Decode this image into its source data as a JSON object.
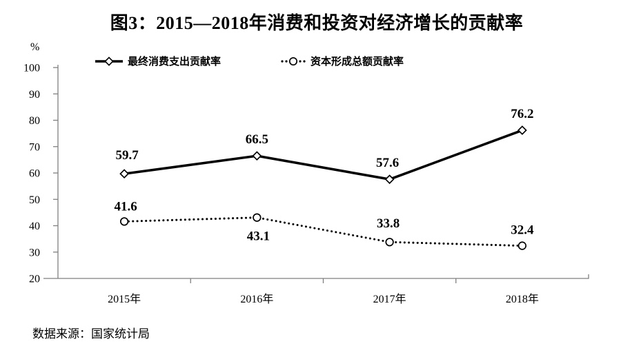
{
  "title": "图3：2015—2018年消费和投资对经济增长的贡献率",
  "y_axis_unit": "%",
  "source_note": "数据来源：国家统计局",
  "legend": [
    {
      "label": "最终消费支出贡献率",
      "marker": "diamond",
      "line": "solid"
    },
    {
      "label": "资本形成总额贡献率",
      "marker": "circle",
      "line": "dotted"
    }
  ],
  "colors": {
    "axis": "#7f7f7f",
    "series": "#000000",
    "text": "#000000",
    "background": "#ffffff",
    "marker_fill": "#ffffff"
  },
  "chart_data": {
    "type": "line",
    "title": "图3：2015—2018年消费和投资对经济增长的贡献率",
    "categories": [
      "2015年",
      "2016年",
      "2017年",
      "2018年"
    ],
    "series": [
      {
        "name": "最终消费支出贡献率",
        "values": [
          59.7,
          66.5,
          57.6,
          76.2
        ],
        "line_style": "solid",
        "marker": "diamond",
        "color": "#000000"
      },
      {
        "name": "资本形成总额贡献率",
        "values": [
          41.6,
          43.1,
          33.8,
          32.4
        ],
        "line_style": "dotted",
        "marker": "circle",
        "color": "#000000"
      }
    ],
    "xlabel": "",
    "ylabel": "%",
    "ylim": [
      20,
      100
    ],
    "y_ticks": [
      100,
      90,
      80,
      70,
      60,
      50,
      40,
      30,
      20
    ],
    "grid": false,
    "legend_position": "top",
    "source": "数据来源：国家统计局"
  }
}
